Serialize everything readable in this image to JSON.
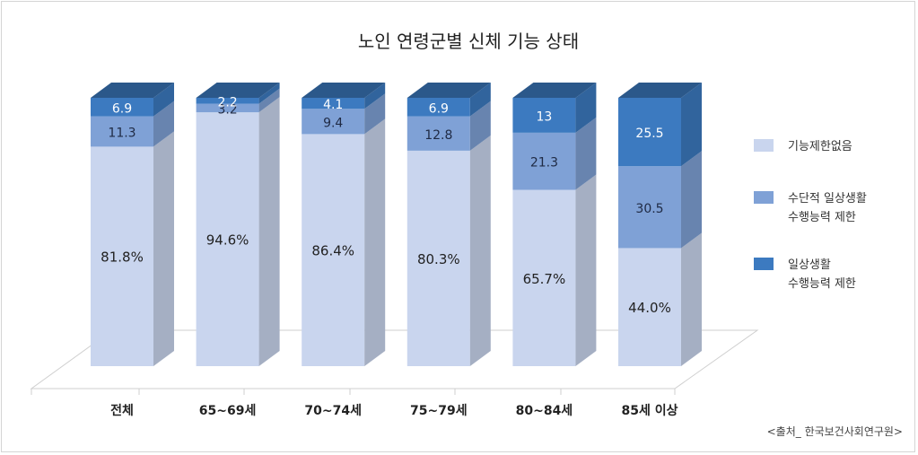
{
  "chart_data": {
    "type": "bar",
    "stacked": true,
    "title": "노인 연령군별 신체 기능 상태",
    "categories": [
      "전체",
      "65~69세",
      "70~74세",
      "75~79세",
      "80~84세",
      "85세 이상"
    ],
    "series": [
      {
        "name": "기능제한없음",
        "values": [
          81.8,
          94.6,
          86.4,
          80.3,
          65.7,
          44.0
        ],
        "labels": [
          "81.8%",
          "94.6%",
          "86.4%",
          "80.3%",
          "65.7%",
          "44.0%"
        ],
        "color": "#c9d5ee"
      },
      {
        "name": "수단적 일상생활 수행능력 제한",
        "values": [
          11.3,
          3.2,
          9.4,
          12.8,
          21.3,
          30.5
        ],
        "labels": [
          "11.3",
          "3.2",
          "9.4",
          "12.8",
          "21.3",
          "30.5"
        ],
        "color": "#7fa1d6"
      },
      {
        "name": "일상생활 수행능력 제한",
        "values": [
          6.9,
          2.2,
          4.1,
          6.9,
          13,
          25.5
        ],
        "labels": [
          "6.9",
          "2.2",
          "4.1",
          "6.9",
          "13",
          "25.5"
        ],
        "color": "#3c7ac0"
      }
    ],
    "legend": {
      "position": "right",
      "items": [
        {
          "lines": [
            "기능제한없음"
          ],
          "color": "#c9d5ee"
        },
        {
          "lines": [
            "수단적 일상생활",
            "수행능력 제한"
          ],
          "color": "#7fa1d6"
        },
        {
          "lines": [
            "일상생활",
            "수행능력 제한"
          ],
          "color": "#3c7ac0"
        }
      ]
    },
    "source": "<출처_ 한국보건사회연구원>"
  }
}
